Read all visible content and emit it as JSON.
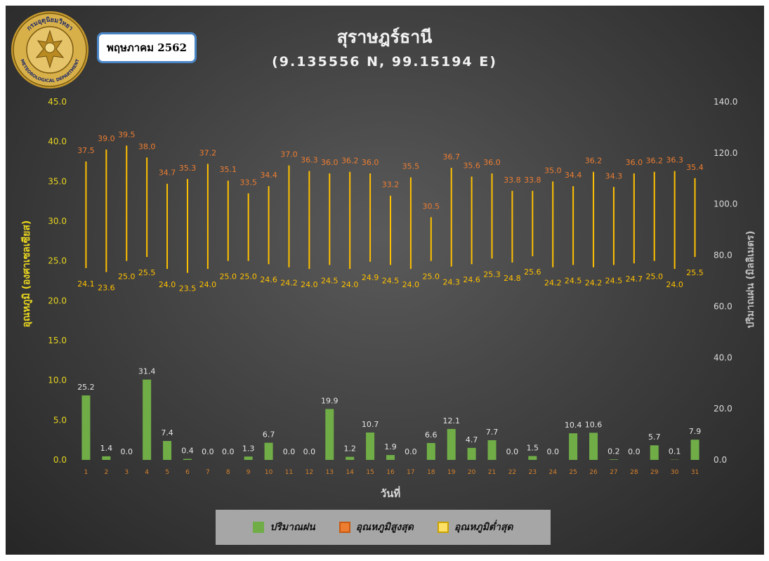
{
  "header": {
    "title": "สุราษฎร์ธานี",
    "subtitle": "(9.135556 N, 99.15194 E)",
    "month": "พฤษภาคม 2562",
    "seal_text_top": "กรมอุตุนิยมวิทยา",
    "seal_text_bottom": "METEOROLOGICAL DEPARTMENT"
  },
  "legend": {
    "items": [
      {
        "label": "ปริมาณฝน",
        "color": "#70ad47",
        "border": "#70ad47"
      },
      {
        "label": "อุณหภูมิสูงสุด",
        "color": "#ed7d31",
        "border": "#c65a11"
      },
      {
        "label": "อุณหภูมิต่ำสุด",
        "color": "#ffe066",
        "border": "#c9a200"
      }
    ]
  },
  "chart_data": {
    "type": "bar",
    "xlabel": "วันที่",
    "ylabel_left": "อุณหภูมิ (องศาเซลเซียส)",
    "ylabel_right": "ปริมาณฝน (มิลลิเมตร)",
    "ylim_left": [
      0,
      45
    ],
    "ylim_right": [
      0,
      140
    ],
    "left_ticks": [
      "0.0",
      "5.0",
      "10.0",
      "15.0",
      "20.0",
      "25.0",
      "30.0",
      "35.0",
      "40.0",
      "45.0"
    ],
    "right_ticks": [
      "0.0",
      "20.0",
      "40.0",
      "60.0",
      "80.0",
      "100.0",
      "120.0",
      "140.0"
    ],
    "categories": [
      "1",
      "2",
      "3",
      "4",
      "5",
      "6",
      "7",
      "8",
      "9",
      "10",
      "11",
      "12",
      "13",
      "14",
      "15",
      "16",
      "17",
      "18",
      "19",
      "20",
      "21",
      "22",
      "23",
      "24",
      "25",
      "26",
      "27",
      "28",
      "29",
      "30",
      "31"
    ],
    "series": [
      {
        "name": "ปริมาณฝน",
        "axis": "right",
        "color": "#70ad47",
        "values": [
          25.2,
          1.4,
          0.0,
          31.4,
          7.4,
          0.4,
          0.0,
          0.0,
          1.3,
          6.7,
          0.0,
          0.0,
          19.9,
          1.2,
          10.7,
          1.9,
          0.0,
          6.6,
          12.1,
          4.7,
          7.7,
          0.0,
          1.5,
          0.0,
          10.4,
          10.6,
          0.2,
          0.0,
          5.7,
          0.1,
          7.9
        ]
      },
      {
        "name": "อุณหภูมิสูงสุด",
        "axis": "left",
        "color": "#ed7d31",
        "values": [
          37.5,
          39.0,
          39.5,
          38.0,
          34.7,
          35.3,
          37.2,
          35.1,
          33.5,
          34.4,
          37.0,
          36.3,
          36.0,
          36.2,
          36.0,
          33.2,
          35.5,
          30.5,
          36.7,
          35.6,
          36.0,
          33.8,
          33.8,
          35.0,
          34.4,
          36.2,
          34.3,
          36.0,
          36.2,
          36.3,
          35.4
        ]
      },
      {
        "name": "อุณหภูมิต่ำสุด",
        "axis": "left",
        "color": "#ffd966",
        "values": [
          24.1,
          23.6,
          25.0,
          25.5,
          24.0,
          23.5,
          24.0,
          25.0,
          25.0,
          24.6,
          24.2,
          24.0,
          24.5,
          24.0,
          24.9,
          24.5,
          24.0,
          25.0,
          24.3,
          24.6,
          25.3,
          24.8,
          25.6,
          24.2,
          24.5,
          24.2,
          24.5,
          24.7,
          25.0,
          24.0,
          25.5
        ]
      }
    ],
    "colors": {
      "left_axis_text": "#e8d51e",
      "right_axis_text": "#d9d9d9",
      "rain_label": "#e6e6e6",
      "hilo_line": "#ffc000",
      "max_label": "#ed7d31",
      "min_label": "#ffc000",
      "category_text": "#d9822b"
    }
  }
}
